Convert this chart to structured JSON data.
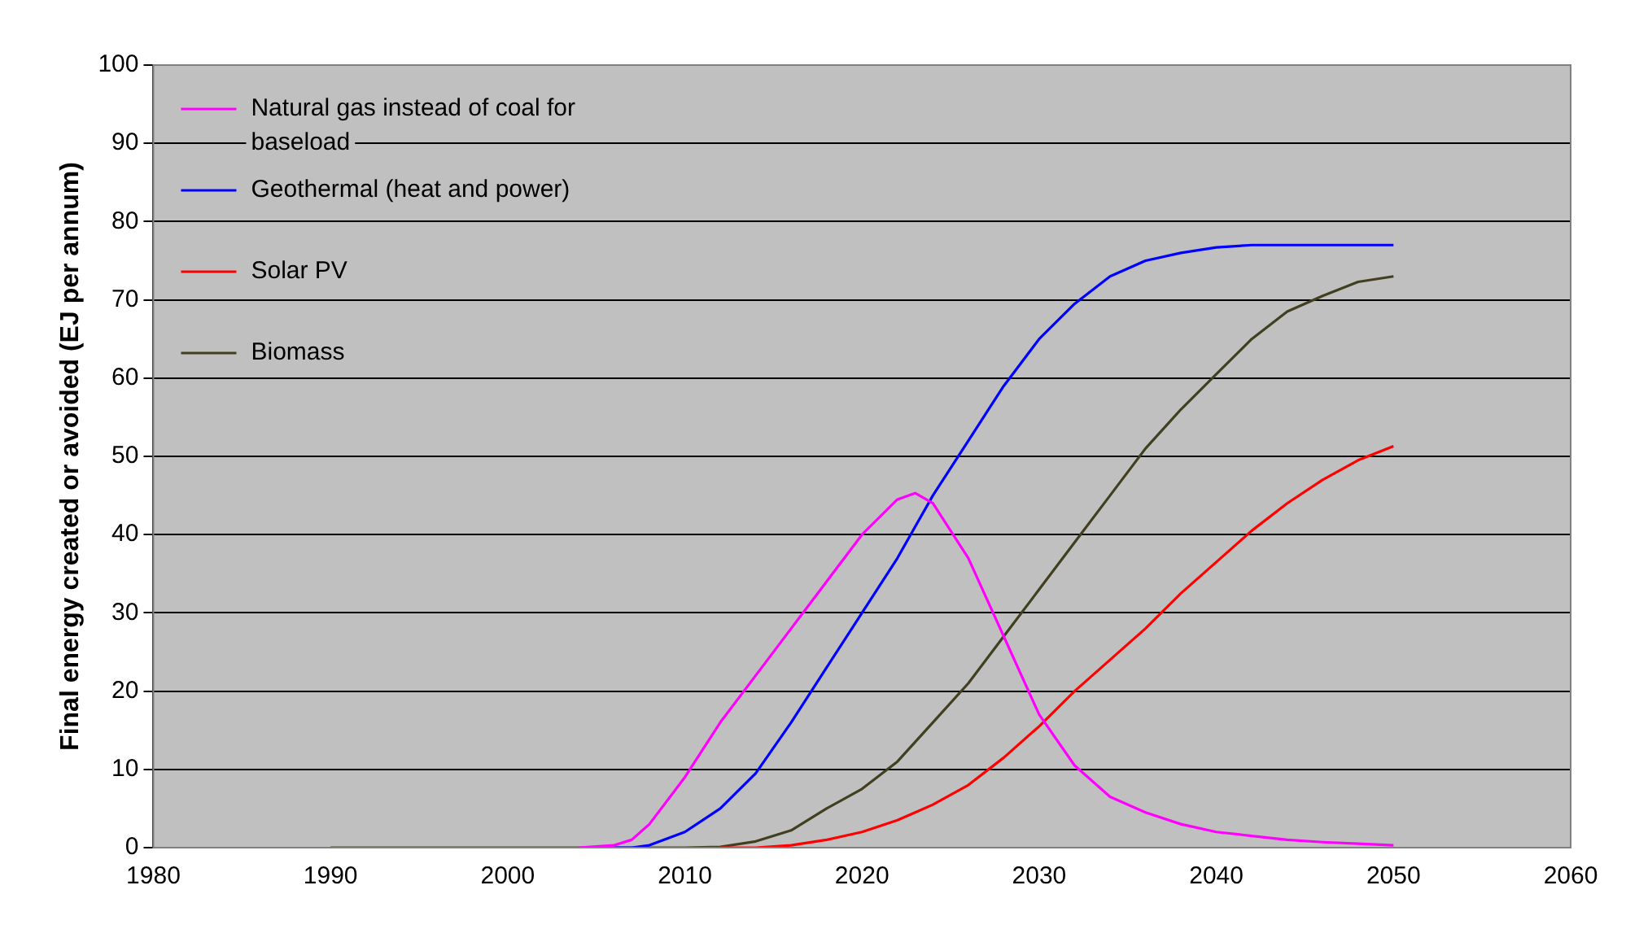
{
  "chart_data": {
    "type": "line",
    "ylabel": "Final energy created or avoided (EJ per annum)",
    "x": [
      1990,
      2000,
      2004,
      2006,
      2007,
      2008,
      2010,
      2012,
      2014,
      2016,
      2018,
      2020,
      2022,
      2023,
      2024,
      2026,
      2028,
      2030,
      2032,
      2034,
      2036,
      2038,
      2040,
      2042,
      2044,
      2046,
      2048,
      2050
    ],
    "series": [
      {
        "name": "Natural gas instead of coal for baseload",
        "color": "#ff00ff",
        "values": [
          null,
          null,
          0,
          0.3,
          1,
          3,
          9,
          16,
          22,
          28,
          34,
          40,
          44.5,
          45.3,
          44,
          37,
          27,
          17,
          10.5,
          6.5,
          4.5,
          3,
          2,
          1.5,
          1,
          0.7,
          0.5,
          0.3
        ]
      },
      {
        "name": "Geothermal (heat and power)",
        "color": "#0000ff",
        "values": [
          null,
          null,
          null,
          0,
          0,
          0.3,
          2,
          5,
          9.5,
          16,
          23,
          30,
          37,
          41,
          45,
          52,
          59,
          65,
          69.5,
          73,
          75,
          76,
          76.7,
          77,
          77,
          77,
          77,
          77
        ]
      },
      {
        "name": "Solar PV",
        "color": "#ff0000",
        "values": [
          null,
          null,
          null,
          null,
          null,
          null,
          null,
          0,
          0,
          0.3,
          1,
          2,
          3.5,
          4.5,
          5.5,
          8,
          11.5,
          15.5,
          20,
          24,
          28,
          32.5,
          36.5,
          40.5,
          44,
          47,
          49.5,
          51.3
        ]
      },
      {
        "name": "Biomass",
        "color": "#404020",
        "values": [
          0,
          0,
          0,
          0,
          0,
          0,
          0,
          0.1,
          0.8,
          2.2,
          5,
          7.5,
          11,
          13.5,
          16,
          21,
          27,
          33,
          39,
          45,
          51,
          56,
          60.5,
          65,
          68.5,
          70.5,
          72.3,
          73
        ]
      }
    ],
    "xlim": [
      1980,
      2060
    ],
    "xticks": [
      1980,
      1990,
      2000,
      2010,
      2020,
      2030,
      2040,
      2050,
      2060
    ],
    "ylim": [
      0,
      100
    ],
    "yticks": [
      0,
      10,
      20,
      30,
      40,
      50,
      60,
      70,
      80,
      90,
      100
    ],
    "grid": "y",
    "legend": "top left",
    "marker": "none",
    "line_style": "solid"
  }
}
